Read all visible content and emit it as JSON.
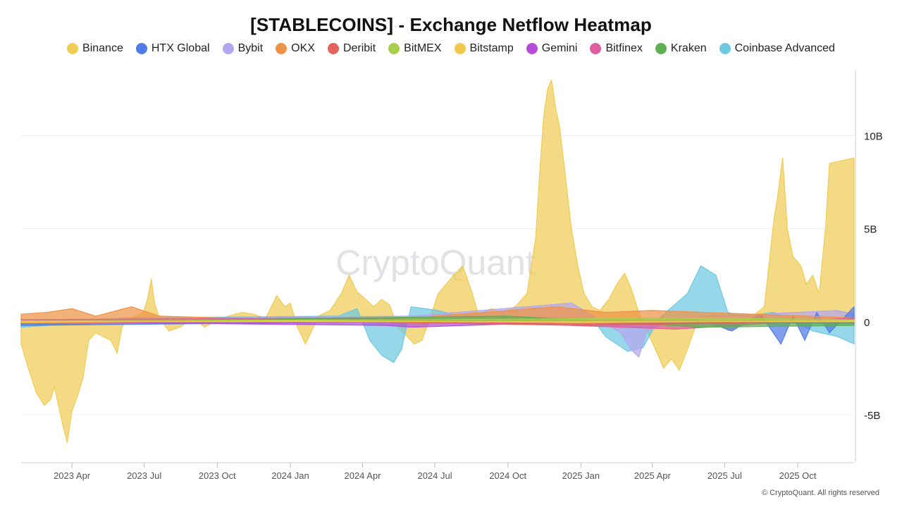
{
  "title": "[STABLECOINS] - Exchange Netflow Heatmap",
  "watermark": "CryptoQuant",
  "copyright": "© CryptoQuant. All rights reserved",
  "chart_data": {
    "type": "area",
    "title": "[STABLECOINS] - Exchange Netflow Heatmap",
    "xlabel": "",
    "ylabel": "",
    "ylim": [
      -7.5,
      13.5
    ],
    "y_ticks": [
      {
        "value": 10,
        "label": "10B"
      },
      {
        "value": 5,
        "label": "5B"
      },
      {
        "value": 0,
        "label": "0"
      },
      {
        "value": -5,
        "label": "-5B"
      }
    ],
    "x_range": [
      "2023-01-27",
      "2025-12-11"
    ],
    "x_ticks": [
      {
        "date": "2023-04-01",
        "label": "2023 Apr"
      },
      {
        "date": "2023-07-01",
        "label": "2023 Jul"
      },
      {
        "date": "2023-10-01",
        "label": "2023 Oct"
      },
      {
        "date": "2024-01-01",
        "label": "2024 Jan"
      },
      {
        "date": "2024-04-01",
        "label": "2024 Apr"
      },
      {
        "date": "2024-07-01",
        "label": "2024 Jul"
      },
      {
        "date": "2024-10-01",
        "label": "2024 Oct"
      },
      {
        "date": "2025-01-01",
        "label": "2025 Jan"
      },
      {
        "date": "2025-04-01",
        "label": "2025 Apr"
      },
      {
        "date": "2025-07-01",
        "label": "2025 Jul"
      },
      {
        "date": "2025-10-01",
        "label": "2025 Oct"
      }
    ],
    "grid": true,
    "legend_position": "top-center",
    "unit": "billion USD",
    "series": [
      {
        "name": "Binance",
        "color": "#F0CC55",
        "points": [
          [
            "2023-01-27",
            -1.2
          ],
          [
            "2023-02-05",
            -2.5
          ],
          [
            "2023-02-15",
            -3.8
          ],
          [
            "2023-02-25",
            -4.5
          ],
          [
            "2023-03-05",
            -4.2
          ],
          [
            "2023-03-10",
            -3.5
          ],
          [
            "2023-03-20",
            -5.5
          ],
          [
            "2023-03-26",
            -6.5
          ],
          [
            "2023-04-01",
            -4.8
          ],
          [
            "2023-04-08",
            -4.0
          ],
          [
            "2023-04-15",
            -3.0
          ],
          [
            "2023-04-22",
            -1.0
          ],
          [
            "2023-05-01",
            -0.6
          ],
          [
            "2023-05-10",
            -0.8
          ],
          [
            "2023-05-20",
            -1.0
          ],
          [
            "2023-05-28",
            -1.7
          ],
          [
            "2023-06-03",
            -0.3
          ],
          [
            "2023-06-10",
            0.2
          ],
          [
            "2023-06-20",
            0.3
          ],
          [
            "2023-06-30",
            0.5
          ],
          [
            "2023-07-05",
            1.2
          ],
          [
            "2023-07-10",
            2.3
          ],
          [
            "2023-07-14",
            1.0
          ],
          [
            "2023-07-20",
            0.2
          ],
          [
            "2023-08-01",
            -0.5
          ],
          [
            "2023-08-15",
            -0.3
          ],
          [
            "2023-09-01",
            0.2
          ],
          [
            "2023-09-15",
            -0.3
          ],
          [
            "2023-10-01",
            0.1
          ],
          [
            "2023-10-15",
            0.3
          ],
          [
            "2023-11-01",
            0.5
          ],
          [
            "2023-11-15",
            0.4
          ],
          [
            "2023-12-01",
            0.2
          ],
          [
            "2023-12-15",
            1.4
          ],
          [
            "2023-12-25",
            0.8
          ],
          [
            "2024-01-01",
            1.0
          ],
          [
            "2024-01-10",
            -0.3
          ],
          [
            "2024-01-20",
            -1.2
          ],
          [
            "2024-01-28",
            -0.5
          ],
          [
            "2024-02-05",
            0.3
          ],
          [
            "2024-02-20",
            0.6
          ],
          [
            "2024-03-05",
            1.5
          ],
          [
            "2024-03-15",
            2.5
          ],
          [
            "2024-03-25",
            1.6
          ],
          [
            "2024-04-05",
            1.2
          ],
          [
            "2024-04-15",
            0.8
          ],
          [
            "2024-04-25",
            1.2
          ],
          [
            "2024-05-05",
            0.9
          ],
          [
            "2024-05-15",
            -0.3
          ],
          [
            "2024-05-25",
            -0.7
          ],
          [
            "2024-06-05",
            -1.2
          ],
          [
            "2024-06-15",
            -1.0
          ],
          [
            "2024-06-25",
            0.2
          ],
          [
            "2024-07-05",
            1.5
          ],
          [
            "2024-07-15",
            2.0
          ],
          [
            "2024-07-25",
            2.5
          ],
          [
            "2024-08-05",
            3.0
          ],
          [
            "2024-08-15",
            1.8
          ],
          [
            "2024-08-25",
            0.4
          ],
          [
            "2024-09-10",
            0.7
          ],
          [
            "2024-09-25",
            0.5
          ],
          [
            "2024-10-10",
            0.8
          ],
          [
            "2024-10-25",
            1.5
          ],
          [
            "2024-11-05",
            4.5
          ],
          [
            "2024-11-10",
            8.0
          ],
          [
            "2024-11-15",
            11.0
          ],
          [
            "2024-11-20",
            12.5
          ],
          [
            "2024-11-25",
            13.0
          ],
          [
            "2024-11-30",
            11.5
          ],
          [
            "2024-12-05",
            10.5
          ],
          [
            "2024-12-12",
            8.0
          ],
          [
            "2024-12-20",
            5.0
          ],
          [
            "2024-12-28",
            3.0
          ],
          [
            "2025-01-05",
            1.5
          ],
          [
            "2025-01-15",
            0.8
          ],
          [
            "2025-01-25",
            0.6
          ],
          [
            "2025-02-05",
            1.2
          ],
          [
            "2025-02-15",
            2.0
          ],
          [
            "2025-02-25",
            2.6
          ],
          [
            "2025-03-05",
            1.8
          ],
          [
            "2025-03-15",
            0.5
          ],
          [
            "2025-03-25",
            -0.5
          ],
          [
            "2025-04-05",
            -1.5
          ],
          [
            "2025-04-15",
            -2.5
          ],
          [
            "2025-04-25",
            -2.0
          ],
          [
            "2025-05-05",
            -2.6
          ],
          [
            "2025-05-15",
            -1.5
          ],
          [
            "2025-05-25",
            -0.3
          ],
          [
            "2025-06-05",
            0.3
          ],
          [
            "2025-06-20",
            0.4
          ],
          [
            "2025-07-05",
            -0.5
          ],
          [
            "2025-07-20",
            -0.2
          ],
          [
            "2025-08-05",
            0.3
          ],
          [
            "2025-08-20",
            0.8
          ],
          [
            "2025-09-01",
            5.5
          ],
          [
            "2025-09-05",
            6.5
          ],
          [
            "2025-09-12",
            8.8
          ],
          [
            "2025-09-18",
            5.0
          ],
          [
            "2025-09-25",
            3.5
          ],
          [
            "2025-10-05",
            3.0
          ],
          [
            "2025-10-12",
            2.0
          ],
          [
            "2025-10-20",
            2.5
          ],
          [
            "2025-10-28",
            1.5
          ],
          [
            "2025-11-05",
            5.0
          ],
          [
            "2025-11-10",
            8.5
          ],
          [
            "2025-12-11",
            8.8
          ]
        ]
      },
      {
        "name": "HTX Global",
        "color": "#4F7BE8",
        "points": [
          [
            "2023-01-27",
            -0.2
          ],
          [
            "2024-06-01",
            0.0
          ],
          [
            "2025-06-01",
            0.1
          ],
          [
            "2025-07-10",
            -0.5
          ],
          [
            "2025-08-15",
            0.4
          ],
          [
            "2025-09-10",
            -1.2
          ],
          [
            "2025-09-25",
            0.3
          ],
          [
            "2025-10-10",
            -1.0
          ],
          [
            "2025-10-25",
            0.5
          ],
          [
            "2025-11-10",
            -0.6
          ],
          [
            "2025-12-11",
            0.8
          ]
        ]
      },
      {
        "name": "Bybit",
        "color": "#B3A6EE",
        "points": [
          [
            "2023-01-27",
            0.1
          ],
          [
            "2024-06-01",
            0.3
          ],
          [
            "2024-12-20",
            1.0
          ],
          [
            "2025-01-10",
            0.5
          ],
          [
            "2025-02-20",
            -0.6
          ],
          [
            "2025-03-05",
            -1.5
          ],
          [
            "2025-03-15",
            -1.9
          ],
          [
            "2025-03-25",
            -0.5
          ],
          [
            "2025-05-01",
            0.2
          ],
          [
            "2025-11-20",
            0.6
          ],
          [
            "2025-12-11",
            0.4
          ]
        ]
      },
      {
        "name": "OKX",
        "color": "#EE9346",
        "points": [
          [
            "2023-01-27",
            0.4
          ],
          [
            "2023-03-01",
            0.5
          ],
          [
            "2023-04-01",
            0.7
          ],
          [
            "2023-05-01",
            0.3
          ],
          [
            "2023-06-15",
            0.8
          ],
          [
            "2023-07-20",
            0.3
          ],
          [
            "2024-01-01",
            0.1
          ],
          [
            "2024-06-01",
            0.2
          ],
          [
            "2024-12-01",
            0.8
          ],
          [
            "2025-02-01",
            0.5
          ],
          [
            "2025-04-01",
            0.6
          ],
          [
            "2025-12-11",
            0.2
          ]
        ]
      },
      {
        "name": "Deribit",
        "color": "#E3625D",
        "points": [
          [
            "2023-01-27",
            -0.1
          ],
          [
            "2024-01-01",
            0.05
          ],
          [
            "2025-01-01",
            -0.2
          ],
          [
            "2025-12-11",
            0.05
          ]
        ]
      },
      {
        "name": "BitMEX",
        "color": "#A9CE4A",
        "points": [
          [
            "2023-01-27",
            0.05
          ],
          [
            "2024-06-01",
            0.1
          ],
          [
            "2025-06-01",
            0.2
          ],
          [
            "2025-12-11",
            0.1
          ]
        ]
      },
      {
        "name": "Bitstamp",
        "color": "#F2C94C",
        "points": [
          [
            "2023-01-27",
            -0.05
          ],
          [
            "2024-01-01",
            0.05
          ],
          [
            "2025-01-01",
            -0.05
          ],
          [
            "2025-12-11",
            0.05
          ]
        ]
      },
      {
        "name": "Gemini",
        "color": "#B64CD8",
        "points": [
          [
            "2023-01-27",
            0.0
          ],
          [
            "2024-05-01",
            -0.2
          ],
          [
            "2024-06-01",
            -0.3
          ],
          [
            "2025-01-01",
            0.0
          ],
          [
            "2025-12-11",
            -0.1
          ]
        ]
      },
      {
        "name": "Bitfinex",
        "color": "#DE5E9E",
        "points": [
          [
            "2023-01-27",
            0.1
          ],
          [
            "2024-04-01",
            0.2
          ],
          [
            "2025-05-01",
            -0.4
          ],
          [
            "2025-12-11",
            0.2
          ]
        ]
      },
      {
        "name": "Kraken",
        "color": "#5FB053",
        "points": [
          [
            "2023-01-27",
            -0.1
          ],
          [
            "2024-03-01",
            0.2
          ],
          [
            "2024-10-01",
            0.3
          ],
          [
            "2025-06-01",
            -0.3
          ],
          [
            "2025-12-11",
            -0.2
          ]
        ]
      },
      {
        "name": "Coinbase Advanced",
        "color": "#6FC8E2",
        "points": [
          [
            "2023-01-27",
            -0.3
          ],
          [
            "2023-03-01",
            -0.2
          ],
          [
            "2023-06-01",
            0.2
          ],
          [
            "2024-03-01",
            0.3
          ],
          [
            "2024-03-25",
            0.7
          ],
          [
            "2024-04-10",
            -1.0
          ],
          [
            "2024-04-25",
            -1.8
          ],
          [
            "2024-05-10",
            -2.2
          ],
          [
            "2024-05-20",
            -1.5
          ],
          [
            "2024-06-01",
            0.8
          ],
          [
            "2024-07-05",
            0.6
          ],
          [
            "2024-08-01",
            0.3
          ],
          [
            "2025-01-15",
            0.2
          ],
          [
            "2025-02-01",
            -0.8
          ],
          [
            "2025-03-01",
            -1.6
          ],
          [
            "2025-03-20",
            -1.4
          ],
          [
            "2025-04-10",
            0.2
          ],
          [
            "2025-05-15",
            1.5
          ],
          [
            "2025-06-01",
            3.0
          ],
          [
            "2025-06-20",
            2.5
          ],
          [
            "2025-07-05",
            0.5
          ],
          [
            "2025-07-25",
            0.3
          ],
          [
            "2025-09-01",
            0.5
          ],
          [
            "2025-10-20",
            -0.5
          ],
          [
            "2025-11-20",
            -0.8
          ],
          [
            "2025-12-11",
            -1.2
          ]
        ]
      }
    ]
  }
}
